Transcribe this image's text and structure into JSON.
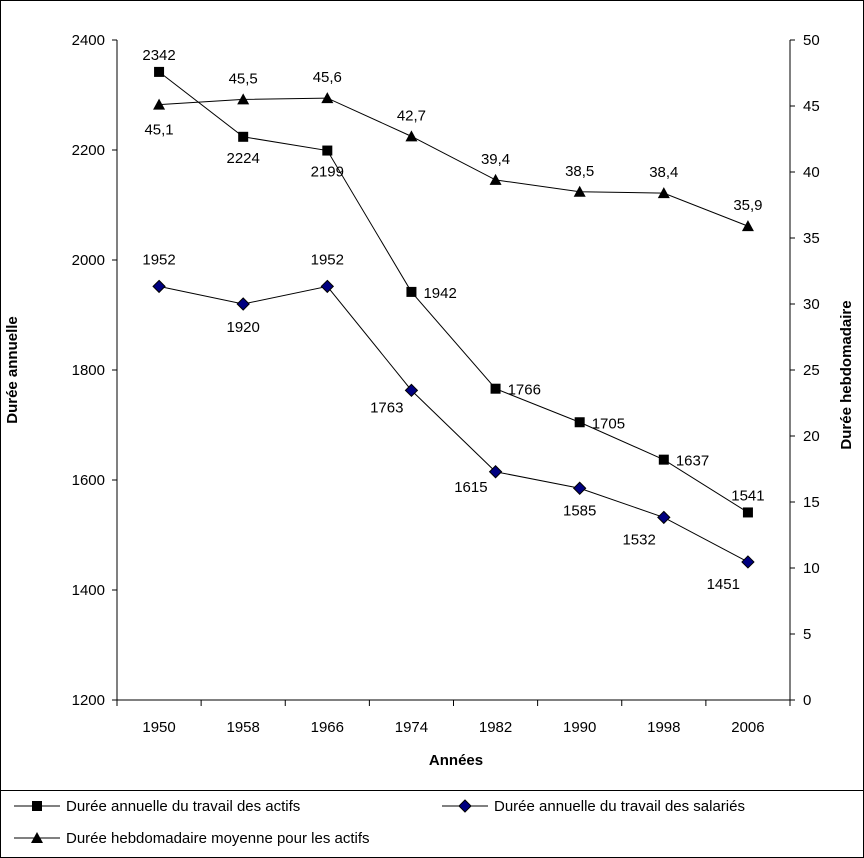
{
  "chart_data": {
    "type": "line",
    "xlabel": "Années",
    "ylabel": "Durée annuelle",
    "y2label": "Durée hebdomadaire",
    "categories": [
      "1950",
      "1958",
      "1966",
      "1974",
      "1982",
      "1990",
      "1998",
      "2006"
    ],
    "ylim": [
      1200,
      2400
    ],
    "yticks": [
      "1200",
      "1400",
      "1600",
      "1800",
      "2000",
      "2200",
      "2400"
    ],
    "y2lim": [
      0,
      50
    ],
    "y2ticks": [
      "0",
      "5",
      "10",
      "15",
      "20",
      "25",
      "30",
      "35",
      "40",
      "45",
      "50"
    ],
    "grid": false,
    "legend_position": "bottom",
    "series": [
      {
        "name": "Durée annuelle du travail des actifs",
        "axis": "left",
        "marker": "square",
        "color": "#000000",
        "values": [
          2342,
          2224,
          2199,
          1942,
          1766,
          1705,
          1637,
          1541
        ],
        "labels": [
          "2342",
          "2224",
          "2199",
          "1942",
          "1766",
          "1705",
          "1637",
          "1541"
        ]
      },
      {
        "name": "Durée annuelle du travail des salariés",
        "axis": "left",
        "marker": "diamond",
        "color": "#000080",
        "values": [
          1952,
          1920,
          1952,
          1763,
          1615,
          1585,
          1532,
          1451
        ],
        "labels": [
          "1952",
          "1920",
          "1952",
          "1763",
          "1615",
          "1585",
          "1532",
          "1451"
        ]
      },
      {
        "name": "Durée hebdomadaire moyenne pour les actifs",
        "axis": "right",
        "marker": "triangle",
        "color": "#000000",
        "values": [
          45.1,
          45.5,
          45.6,
          42.7,
          39.4,
          38.5,
          38.4,
          35.9
        ],
        "labels": [
          "45,1",
          "45,5",
          "45,6",
          "42,7",
          "39,4",
          "38,5",
          "38,4",
          "35,9"
        ]
      }
    ]
  }
}
